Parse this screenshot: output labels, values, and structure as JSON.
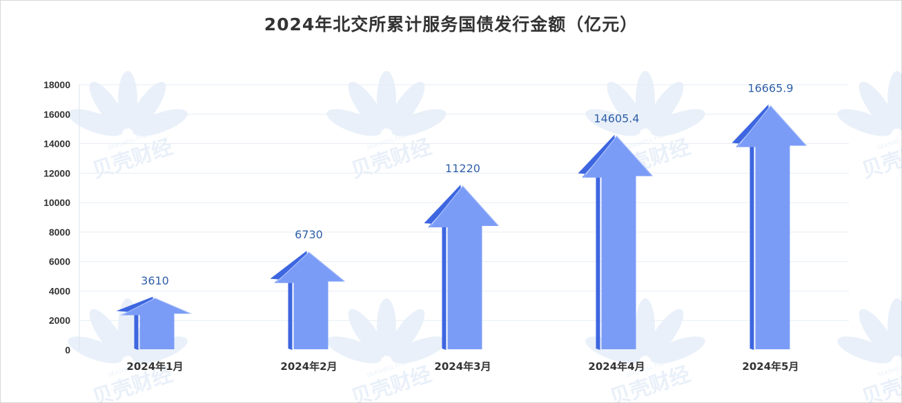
{
  "chart_data": {
    "type": "bar",
    "title": "2024年北交所累计服务国债发行金额（亿元）",
    "categories": [
      "2024年1月",
      "2024年2月",
      "2024年3月",
      "2024年4月",
      "2024年5月"
    ],
    "values": [
      3610,
      6730,
      11220,
      14605.4,
      16665.9
    ],
    "value_labels": [
      "3610",
      "6730",
      "11220",
      "14605.4",
      "16665.9"
    ],
    "ylim": [
      0,
      18000
    ],
    "yticks": [
      "0",
      "2000",
      "4000",
      "6000",
      "8000",
      "10000",
      "12000",
      "14000",
      "16000",
      "18000"
    ],
    "grid": true,
    "mark_shape": "arrow",
    "colors": {
      "arrow_face": "#7b9cf6",
      "arrow_side": "#3d66e0",
      "value_label": "#2f5fa7",
      "tick_label": "#333333",
      "grid": "#e6edf5"
    }
  },
  "watermark": {
    "brand": "贝壳财经",
    "tagline": "SEASHELL FINANCE"
  }
}
